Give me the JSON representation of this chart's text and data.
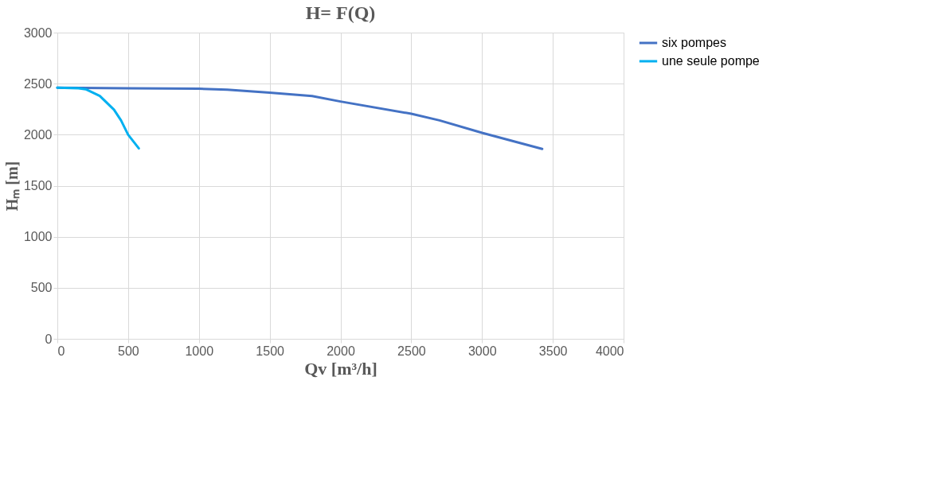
{
  "chart_data": {
    "type": "line",
    "title": "H= F(Q)",
    "xlabel": "Qv [m³/h]",
    "ylabel": "Hₘ [m]",
    "xlim": [
      0,
      4000
    ],
    "xticks": [
      0,
      500,
      1000,
      1500,
      2000,
      2500,
      3000,
      3500,
      4000
    ],
    "ylim": [
      0,
      3000
    ],
    "yticks": [
      0,
      500,
      1000,
      1500,
      2000,
      2500,
      3000
    ],
    "grid": true,
    "legend": "right",
    "marker": "none",
    "line_style": "solid",
    "series": [
      {
        "name": "six pompes",
        "color": "#4472c4",
        "x": [
          0,
          500,
          1000,
          1200,
          1500,
          1800,
          2000,
          2500,
          2700,
          3000,
          3425
        ],
        "values": [
          2460,
          2455,
          2450,
          2440,
          2412,
          2378,
          2325,
          2205,
          2140,
          2018,
          1860
        ]
      },
      {
        "name": "une seule pompe",
        "color": "#00b0f0",
        "x": [
          0,
          150,
          200,
          300,
          400,
          450,
          500,
          576
        ],
        "values": [
          2460,
          2455,
          2445,
          2380,
          2245,
          2140,
          2000,
          1865
        ]
      }
    ]
  }
}
